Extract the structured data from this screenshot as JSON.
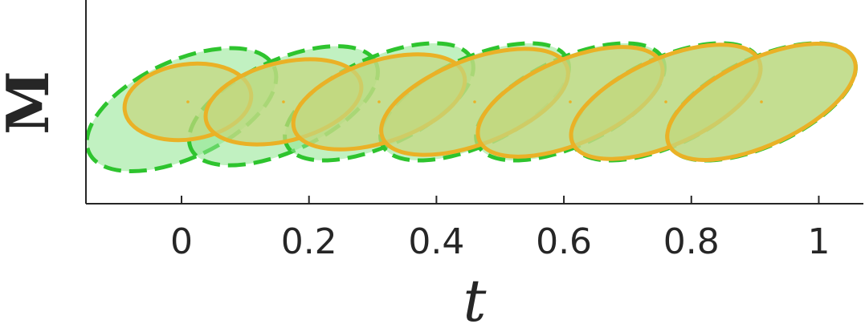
{
  "chart_data": {
    "type": "scatter",
    "title": "",
    "xlabel": "t",
    "ylabel": "M",
    "xlim": [
      -0.15,
      1.07
    ],
    "ylim": [
      -1.3,
      1.3
    ],
    "xticks": [
      0,
      0.2,
      0.4,
      0.6,
      0.8,
      1
    ],
    "xtick_labels": [
      "0",
      "0.2",
      "0.4",
      "0.6",
      "0.8",
      "1"
    ],
    "yticks": [],
    "grid": false,
    "legend": "none",
    "colors": {
      "dashed_fill": "#8ee68e",
      "dashed_edge": "#2ec42e",
      "solid_fill": "#c5d77e",
      "solid_edge": "#eab126",
      "axis": "#262626"
    },
    "series": [
      {
        "style": "dashed-outline",
        "ellipses": [
          {
            "center": [
              0.0,
              -0.1
            ],
            "half_width_t": 0.16,
            "half_height_M": 0.62,
            "tilt_deg": -25
          },
          {
            "center": [
              0.16,
              -0.05
            ],
            "half_width_t": 0.16,
            "half_height_M": 0.58,
            "tilt_deg": -25
          },
          {
            "center": [
              0.31,
              0.0
            ],
            "half_width_t": 0.16,
            "half_height_M": 0.56,
            "tilt_deg": -25
          },
          {
            "center": [
              0.46,
              0.0
            ],
            "half_width_t": 0.16,
            "half_height_M": 0.56,
            "tilt_deg": -25
          },
          {
            "center": [
              0.61,
              0.0
            ],
            "half_width_t": 0.16,
            "half_height_M": 0.56,
            "tilt_deg": -25
          },
          {
            "center": [
              0.76,
              0.0
            ],
            "half_width_t": 0.16,
            "half_height_M": 0.56,
            "tilt_deg": -25
          },
          {
            "center": [
              0.91,
              0.0
            ],
            "half_width_t": 0.16,
            "half_height_M": 0.56,
            "tilt_deg": -25
          }
        ]
      },
      {
        "style": "solid-outline",
        "ellipses": [
          {
            "center": [
              0.01,
              0.0
            ],
            "half_width_t": 0.1,
            "half_height_M": 0.48,
            "tilt_deg": -8
          },
          {
            "center": [
              0.16,
              0.0
            ],
            "half_width_t": 0.125,
            "half_height_M": 0.5,
            "tilt_deg": -14
          },
          {
            "center": [
              0.31,
              0.0
            ],
            "half_width_t": 0.14,
            "half_height_M": 0.52,
            "tilt_deg": -18
          },
          {
            "center": [
              0.46,
              0.0
            ],
            "half_width_t": 0.155,
            "half_height_M": 0.54,
            "tilt_deg": -21
          },
          {
            "center": [
              0.61,
              0.0
            ],
            "half_width_t": 0.155,
            "half_height_M": 0.54,
            "tilt_deg": -23
          },
          {
            "center": [
              0.76,
              0.0
            ],
            "half_width_t": 0.16,
            "half_height_M": 0.55,
            "tilt_deg": -24
          },
          {
            "center": [
              0.91,
              0.0
            ],
            "half_width_t": 0.16,
            "half_height_M": 0.55,
            "tilt_deg": -25
          }
        ]
      }
    ]
  }
}
